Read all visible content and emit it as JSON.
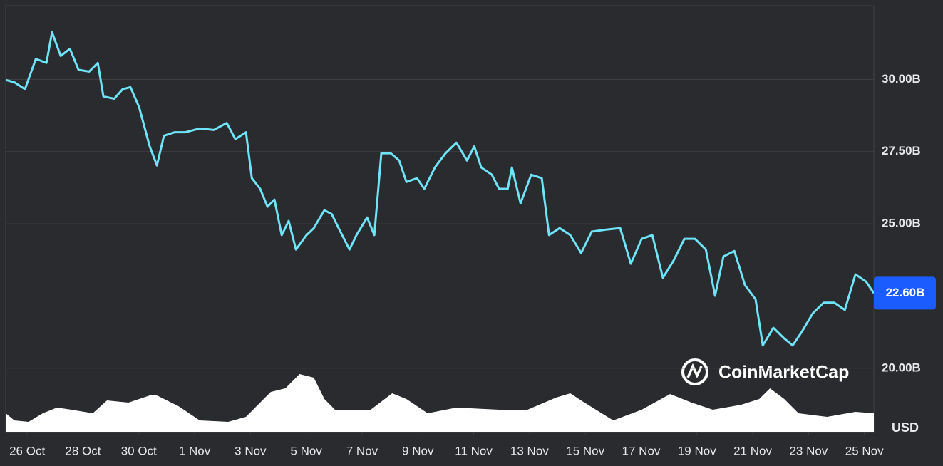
{
  "chart_data": {
    "type": "line",
    "color": "#6fe3f7",
    "x": [
      -0.77,
      -0.46,
      -0.08,
      0.31,
      0.69,
      0.89,
      1.2,
      1.53,
      1.84,
      2.22,
      2.53,
      2.73,
      3.12,
      3.42,
      3.7,
      4.01,
      4.39,
      4.65,
      4.9,
      5.29,
      5.67,
      6.18,
      6.69,
      7.15,
      7.46,
      7.84,
      8.05,
      8.35,
      8.61,
      8.86,
      9.12,
      9.37,
      9.63,
      10.01,
      10.27,
      10.65,
      10.91,
      11.16,
      11.55,
      11.8,
      12.18,
      12.44,
      12.69,
      13.03,
      13.33,
      13.59,
      13.97,
      14.23,
      14.61,
      14.99,
      15.38,
      15.76,
      16.02,
      16.27,
      16.65,
      16.91,
      17.22,
      17.37,
      17.68,
      18.06,
      18.44,
      18.7,
      19.08,
      19.46,
      19.85,
      20.23,
      20.74,
      21.25,
      21.63,
      22.02,
      22.4,
      22.78,
      23.17,
      23.55,
      23.93,
      24.32,
      24.65,
      24.95,
      25.34,
      25.72,
      26.1,
      26.36,
      26.74,
      27.13,
      27.43,
      27.77,
      28.15,
      28.54,
      28.92,
      29.3,
      29.68,
      30.06,
      30.34
    ],
    "values": [
      29.98,
      29.9,
      29.66,
      30.71,
      30.57,
      31.63,
      30.81,
      31.06,
      30.33,
      30.27,
      30.57,
      29.41,
      29.33,
      29.66,
      29.73,
      29.04,
      27.68,
      27.02,
      28.05,
      28.17,
      28.17,
      28.3,
      28.25,
      28.49,
      27.93,
      28.17,
      26.58,
      26.21,
      25.59,
      25.84,
      24.61,
      25.1,
      24.11,
      24.61,
      24.85,
      25.47,
      25.34,
      24.85,
      24.11,
      24.61,
      25.22,
      24.61,
      27.44,
      27.44,
      27.19,
      26.45,
      26.58,
      26.21,
      26.95,
      27.44,
      27.81,
      27.19,
      27.68,
      26.95,
      26.7,
      26.21,
      26.21,
      26.95,
      25.71,
      26.7,
      26.58,
      24.61,
      24.85,
      24.61,
      23.99,
      24.73,
      24.8,
      24.85,
      23.62,
      24.48,
      24.61,
      23.13,
      23.74,
      24.48,
      24.48,
      24.11,
      22.51,
      23.87,
      24.06,
      22.88,
      22.39,
      20.79,
      21.4,
      21.03,
      20.79,
      21.28,
      21.9,
      22.27,
      22.27,
      22.02,
      23.25,
      23.0,
      22.6
    ],
    "xlim": [
      -0.77,
      30.34
    ],
    "xticks": [
      {
        "value": 0,
        "label": "26 Oct"
      },
      {
        "value": 2,
        "label": "28 Oct"
      },
      {
        "value": 4,
        "label": "30 Oct"
      },
      {
        "value": 6,
        "label": "1 Nov"
      },
      {
        "value": 8,
        "label": "3 Nov"
      },
      {
        "value": 10,
        "label": "5 Nov"
      },
      {
        "value": 12,
        "label": "7 Nov"
      },
      {
        "value": 14,
        "label": "9 Nov"
      },
      {
        "value": 16,
        "label": "11 Nov"
      },
      {
        "value": 18,
        "label": "13 Nov"
      },
      {
        "value": 20,
        "label": "15 Nov"
      },
      {
        "value": 22,
        "label": "17 Nov"
      },
      {
        "value": 24,
        "label": "19 Nov"
      },
      {
        "value": 26,
        "label": "21 Nov"
      },
      {
        "value": 28,
        "label": "23 Nov"
      },
      {
        "value": 30,
        "label": "25 Nov"
      }
    ],
    "ylim": [
      17.8,
      32.55
    ],
    "yticks": [
      {
        "value": 20,
        "label": "20.00B"
      },
      {
        "value": 25,
        "label": "25.00B"
      },
      {
        "value": 27.5,
        "label": "27.50B"
      },
      {
        "value": 30,
        "label": "30.00B"
      }
    ],
    "grid": true,
    "y_unit": "USD",
    "last_value_label": {
      "value": 22.6,
      "label": "22.60B"
    },
    "watermark": "CoinMarketCap",
    "volume": {
      "color": "#ffffff",
      "ylim": [
        0,
        100
      ],
      "x": [
        -0.77,
        -0.46,
        0.05,
        0.56,
        1.07,
        1.58,
        2.35,
        2.86,
        3.63,
        4.39,
        4.65,
        5.42,
        6.18,
        7.2,
        7.84,
        8.22,
        8.73,
        9.25,
        9.76,
        10.27,
        10.65,
        11.03,
        12.31,
        13.08,
        13.59,
        14.35,
        15.38,
        16.91,
        17.93,
        18.95,
        19.46,
        19.97,
        21.0,
        22.02,
        23.04,
        23.81,
        24.57,
        25.59,
        26.23,
        26.62,
        27.13,
        27.64,
        28.66,
        29.68,
        30.34
      ],
      "values": [
        30.2,
        18.6,
        16.3,
        30.2,
        39.5,
        36.0,
        30.2,
        51.2,
        47.7,
        59.3,
        59.3,
        41.9,
        18.6,
        16.3,
        24.4,
        41.9,
        65.1,
        70.9,
        94.2,
        88.4,
        53.5,
        36.0,
        36.0,
        62.8,
        53.5,
        30.2,
        39.5,
        36.0,
        36.0,
        55.8,
        62.8,
        47.7,
        18.6,
        36.0,
        61.6,
        47.7,
        36.0,
        44.2,
        53.5,
        70.9,
        53.5,
        30.2,
        24.4,
        32.6,
        30.2
      ]
    }
  }
}
